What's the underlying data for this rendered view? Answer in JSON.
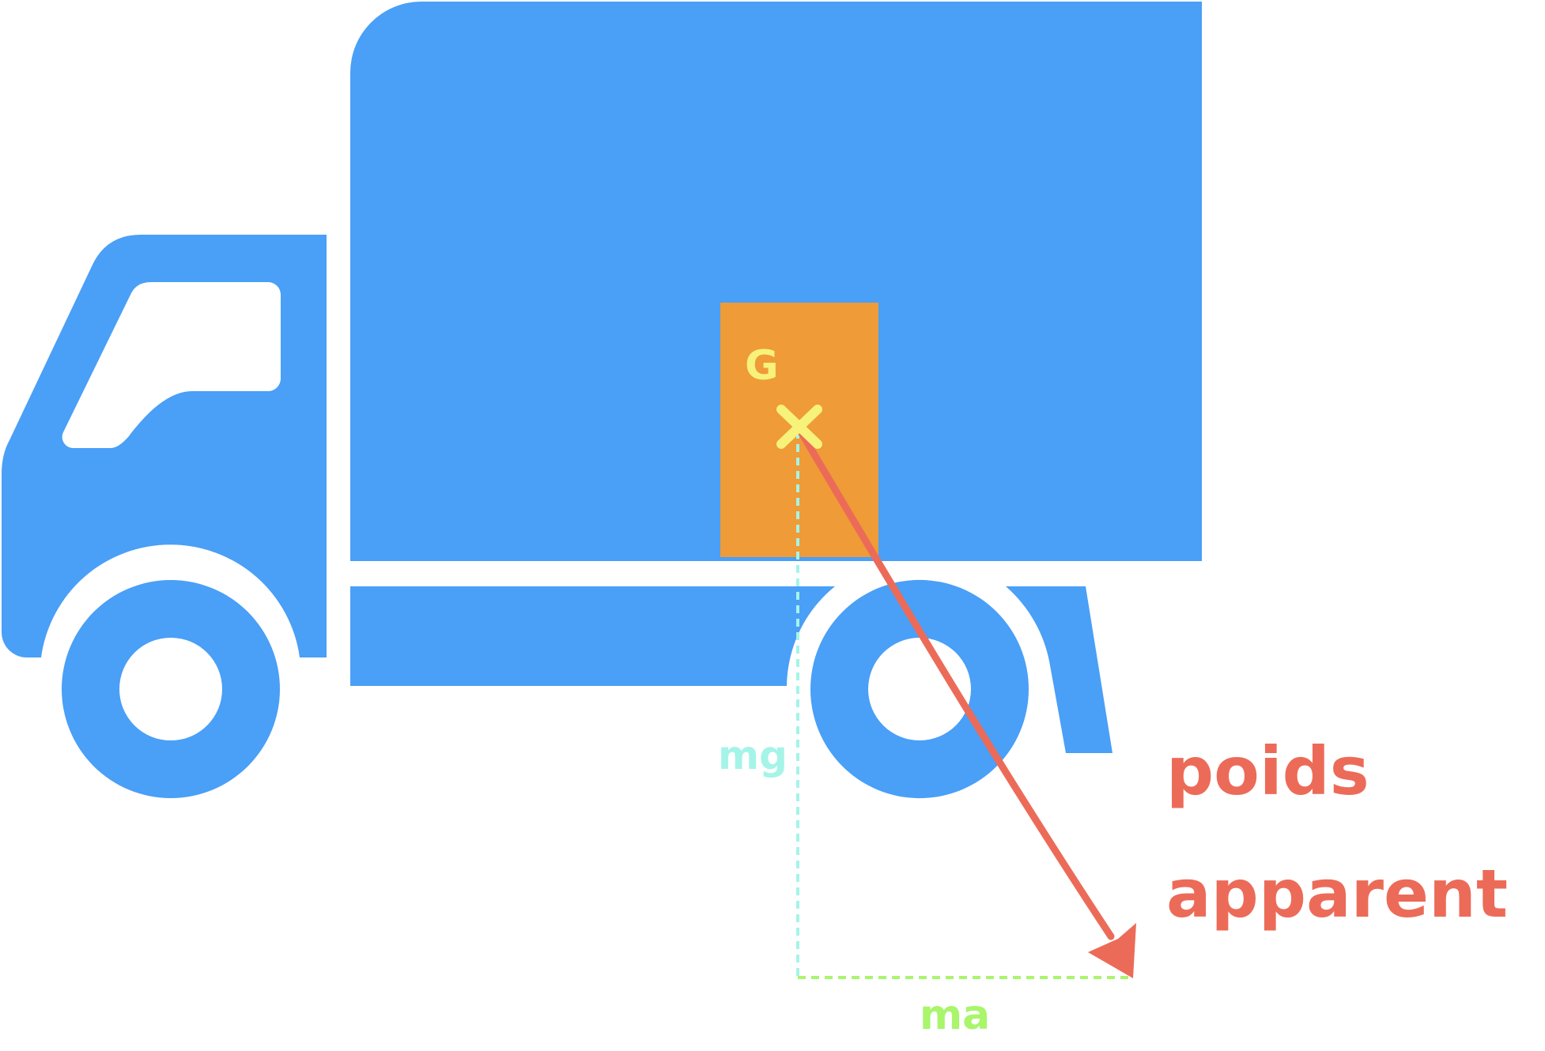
{
  "colors": {
    "truck": "#4a9ff7",
    "cargo": "#ee9b38",
    "center_mark": "#f7f27a",
    "apparent_weight": "#ec6b58",
    "gravity": "#a5f4e8",
    "inertial": "#a9f56c",
    "background": "#ffffff"
  },
  "labels": {
    "center_of_gravity": "G",
    "gravity_force": "mg",
    "inertial_force": "ma",
    "apparent_weight_line1": "poids",
    "apparent_weight_line2": "apparent"
  }
}
